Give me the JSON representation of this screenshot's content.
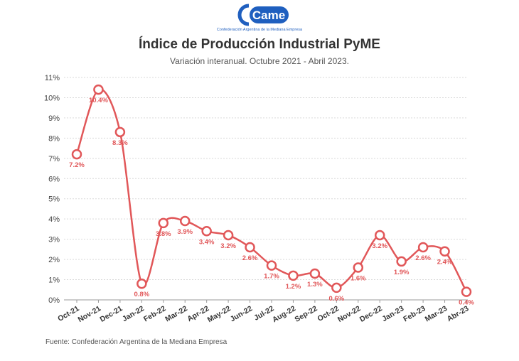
{
  "logo": {
    "text": "Came",
    "tagline": "Confederación Argentina de la Mediana Empresa"
  },
  "colors": {
    "series": "#e15759",
    "grid": "#d9d9d9",
    "logo": "#1f5fbf"
  },
  "chart_data": {
    "type": "line",
    "title": "Índice de Producción Industrial PyME",
    "subtitle": "Variación interanual. Octubre 2021 - Abril 2023.",
    "xlabel": "",
    "ylabel": "",
    "ylim": [
      0,
      11
    ],
    "yticks": [
      "0%",
      "1%",
      "2%",
      "3%",
      "4%",
      "5%",
      "6%",
      "7%",
      "8%",
      "9%",
      "10%",
      "11%"
    ],
    "grid": true,
    "categories": [
      "Oct-21",
      "Nov-21",
      "Dec-21",
      "Jan-22",
      "Feb-22",
      "Mar-22",
      "Apr-22",
      "May-22",
      "Jun-22",
      "Jul-22",
      "Aug-22",
      "Sep-22",
      "Oct-22",
      "Nov-22",
      "Dec-22",
      "Jan-23",
      "Feb-23",
      "Mar-23",
      "Abr-23"
    ],
    "series": [
      {
        "values": [
          7.2,
          10.4,
          8.3,
          0.8,
          3.8,
          3.9,
          3.4,
          3.2,
          2.6,
          1.7,
          1.2,
          1.3,
          0.6,
          1.6,
          3.2,
          1.9,
          2.6,
          2.4,
          0.4
        ],
        "labels": [
          "7.2%",
          "10.4%",
          "8.3%",
          "0.8%",
          "3.8%",
          "3.9%",
          "3.4%",
          "3.2%",
          "2.6%",
          "1.7%",
          "1.2%",
          "1.3%",
          "0.6%",
          "1.6%",
          "3.2%",
          "1.9%",
          "2.6%",
          "2.4%",
          "0.4%"
        ]
      }
    ]
  },
  "source": "Fuente: Confederación Argentina de la Mediana Empresa"
}
